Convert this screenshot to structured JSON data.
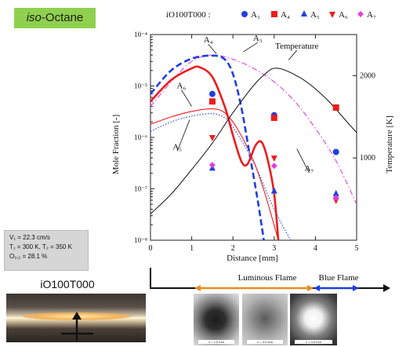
{
  "fuel_tag": {
    "prefix": "iso",
    "rest": "-Octane"
  },
  "conditions": {
    "line1": "V₁ = 22.3 cm/s",
    "line2": "T₁ = 300 K, T₂ = 350 K",
    "line3": "O₂,₁ = 28.1 %"
  },
  "case_label": "iO100T000",
  "flame_zones": {
    "luminous": "Luminous Flame",
    "blue": "Blue Flame"
  },
  "snapshots": [
    {
      "label": "x = 1.5 mm"
    },
    {
      "label": "x = 3.0 mm"
    },
    {
      "label": "x = 4.5 mm"
    }
  ],
  "colors": {
    "A3": "#1f3fe0",
    "A4": "#ee1c1c",
    "A5": "#1f3fe0",
    "A6": "#ee1c1c",
    "A7": "#e040e0",
    "temperature": "#222222",
    "axis": "#222222",
    "arrow_orange": "#ee8a1e",
    "arrow_blue": "#1f3fe0"
  },
  "chart_data": {
    "type": "line",
    "legend_title": "iO100T000 :",
    "legend_placement": "top",
    "xlabel": "Distance [mm]",
    "ylabel": "Mole Fraction [-]",
    "y2label": "Temperature [K]",
    "xlim": [
      0,
      5
    ],
    "ylim": [
      1e-08,
      0.0001
    ],
    "yscale": "log",
    "y2lim": [
      0,
      2500
    ],
    "x_ticks": [
      "0",
      "1",
      "2",
      "3",
      "4",
      "5"
    ],
    "y_ticks": [
      "10⁻⁸",
      "10⁻⁷",
      "10⁻⁶",
      "10⁻⁵",
      "10⁻⁴"
    ],
    "y2_ticks": [
      "1000",
      "2000"
    ],
    "y_tick_values": [
      1e-08,
      1e-07,
      1e-06,
      1e-05,
      0.0001
    ],
    "y2_tick_values": [
      1000,
      2000
    ],
    "markers": [
      {
        "name": "A₃",
        "shape": "circle",
        "color": "#1f3fe0",
        "points": [
          [
            1.5,
            7e-06
          ],
          [
            3.0,
            2.7e-06
          ],
          [
            4.5,
            5.2e-07
          ]
        ]
      },
      {
        "name": "A₄",
        "shape": "square",
        "color": "#ee1c1c",
        "points": [
          [
            1.5,
            5e-06
          ],
          [
            3.0,
            2.4e-06
          ],
          [
            4.5,
            3.8e-06
          ]
        ]
      },
      {
        "name": "A₅",
        "shape": "triangle-up",
        "color": "#1f3fe0",
        "points": [
          [
            1.5,
            2.5e-07
          ],
          [
            3.0,
            9e-08
          ],
          [
            4.5,
            8e-08
          ]
        ]
      },
      {
        "name": "A₆",
        "shape": "triangle-down",
        "color": "#ee1c1c",
        "points": [
          [
            1.5,
            1e-06
          ],
          [
            3.0,
            4e-07
          ],
          [
            4.5,
            6e-08
          ]
        ]
      },
      {
        "name": "A₇",
        "shape": "diamond",
        "color": "#e040e0",
        "points": [
          [
            1.5,
            2.9e-07
          ],
          [
            3.0,
            2.8e-07
          ],
          [
            4.5,
            6.7e-08
          ]
        ]
      }
    ],
    "lines": [
      {
        "name": "A₃",
        "style": "thick-dashed",
        "color": "#1f3fe0",
        "points": [
          [
            0,
            7e-06
          ],
          [
            0.5,
            2e-05
          ],
          [
            1.0,
            3.4e-05
          ],
          [
            1.5,
            3.9e-05
          ],
          [
            1.8,
            3.3e-05
          ],
          [
            2.0,
            1.7e-05
          ],
          [
            2.2,
            4e-06
          ],
          [
            2.4,
            5e-07
          ],
          [
            2.6,
            6e-08
          ],
          [
            2.75,
            1e-08
          ]
        ]
      },
      {
        "name": "A₄",
        "style": "thick-solid",
        "color": "#ee1c1c",
        "points": [
          [
            0,
            5e-06
          ],
          [
            0.5,
            1.3e-05
          ],
          [
            1.0,
            2.2e-05
          ],
          [
            1.2,
            2.3e-05
          ],
          [
            1.5,
            1.5e-05
          ],
          [
            1.8,
            4e-06
          ],
          [
            2.0,
            1.1e-06
          ],
          [
            2.2,
            3.5e-07
          ],
          [
            2.35,
            3e-07
          ],
          [
            2.55,
            7e-07
          ],
          [
            2.7,
            8e-07
          ],
          [
            2.85,
            3.5e-07
          ],
          [
            3.0,
            8e-08
          ],
          [
            3.1,
            1e-08
          ]
        ]
      },
      {
        "name": "A₅",
        "style": "thin-dotted",
        "color": "#1f3fe0",
        "points": [
          [
            0,
            1.3e-06
          ],
          [
            0.5,
            2e-06
          ],
          [
            1.0,
            2.6e-06
          ],
          [
            1.5,
            2.9e-06
          ],
          [
            1.8,
            2.4e-06
          ],
          [
            2.0,
            1.6e-06
          ],
          [
            2.5,
            3.3e-07
          ],
          [
            3.0,
            4e-08
          ],
          [
            3.4,
            1e-08
          ]
        ]
      },
      {
        "name": "A₆",
        "style": "thin-solid",
        "color": "#ee1c1c",
        "points": [
          [
            0,
            1.8e-06
          ],
          [
            0.5,
            2.5e-06
          ],
          [
            1.0,
            3.2e-06
          ],
          [
            1.5,
            3.6e-06
          ],
          [
            1.8,
            3e-06
          ],
          [
            2.1,
            1.5e-06
          ],
          [
            2.5,
            3.5e-07
          ],
          [
            2.8,
            7e-08
          ],
          [
            3.1,
            1e-08
          ]
        ]
      },
      {
        "name": "A₇",
        "style": "thin-dashdot",
        "color": "#e040e0",
        "points": [
          [
            0,
            4e-06
          ],
          [
            0.5,
            1.2e-05
          ],
          [
            1.0,
            3e-05
          ],
          [
            1.5,
            4e-05
          ],
          [
            2.0,
            3.3e-05
          ],
          [
            2.5,
            2.2e-05
          ],
          [
            3.0,
            1.2e-05
          ],
          [
            3.5,
            5e-06
          ],
          [
            4.0,
            1.5e-06
          ],
          [
            4.5,
            3.5e-07
          ],
          [
            5.0,
            5e-08
          ]
        ]
      }
    ],
    "temperature": {
      "name": "Temperature",
      "axis": "right",
      "color": "#222222",
      "points": [
        [
          0,
          320
        ],
        [
          0.5,
          560
        ],
        [
          1.0,
          860
        ],
        [
          1.5,
          1180
        ],
        [
          2.0,
          1550
        ],
        [
          2.5,
          1880
        ],
        [
          2.8,
          2030
        ],
        [
          3.0,
          2090
        ],
        [
          3.3,
          2060
        ],
        [
          3.8,
          1920
        ],
        [
          4.3,
          1700
        ],
        [
          4.8,
          1420
        ],
        [
          5.0,
          1310
        ]
      ]
    },
    "annotations": [
      {
        "text": "A₄",
        "at": [
          1.4,
          7e-05
        ]
      },
      {
        "text": "A₃",
        "at": [
          2.6,
          7.5e-05
        ]
      },
      {
        "text": "A₆",
        "at": [
          0.75,
          9e-06
        ]
      },
      {
        "text": "A₅",
        "at": [
          0.65,
          5.8e-07
        ]
      },
      {
        "text": "A₇",
        "at": [
          3.85,
          2.2e-07
        ]
      },
      {
        "text": "Temperature",
        "at": [
          3.55,
          5.3e-05
        ]
      }
    ]
  }
}
